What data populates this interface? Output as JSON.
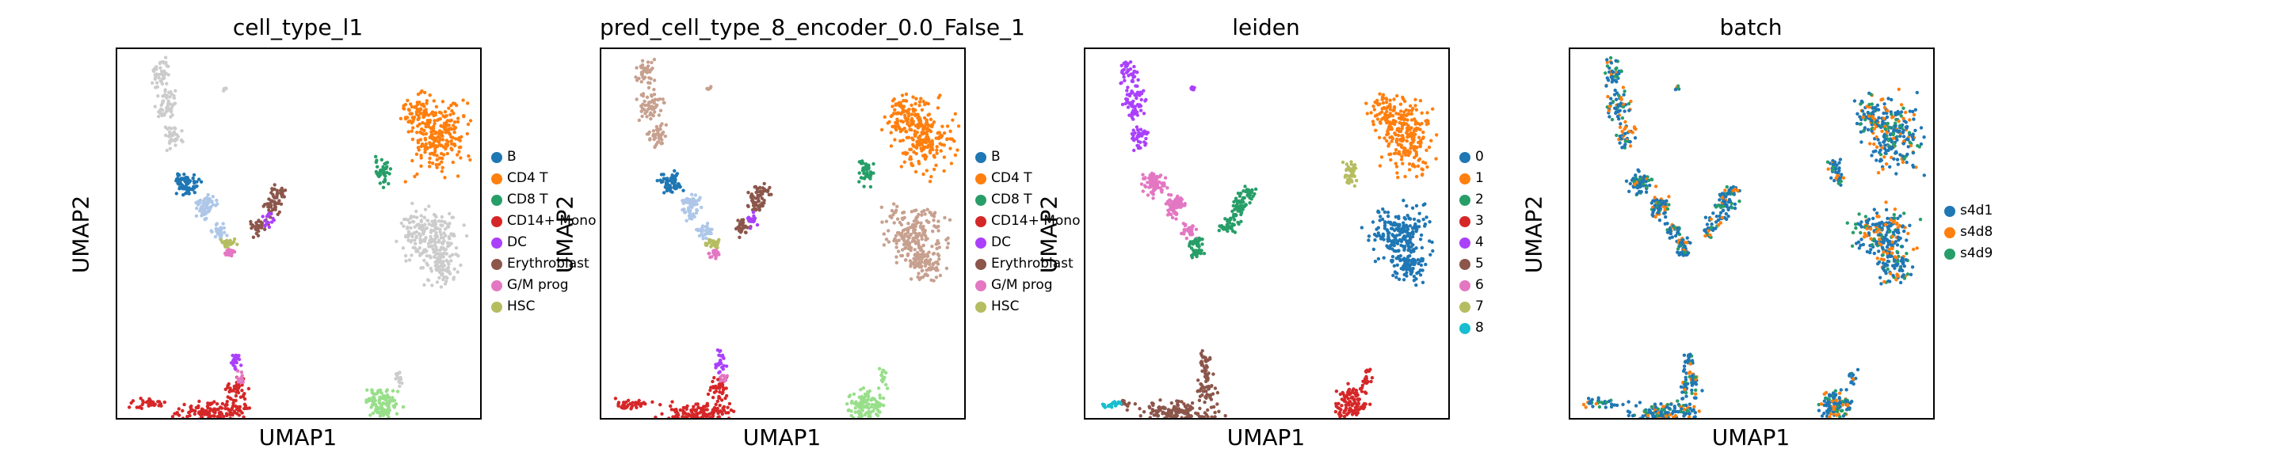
{
  "panels": [
    {
      "title": "cell_type_l1",
      "xlabel": "UMAP1",
      "ylabel": "UMAP2",
      "legend": [
        {
          "label": "B",
          "color": "#1f77b4"
        },
        {
          "label": "CD4 T",
          "color": "#ff7f0e"
        },
        {
          "label": "CD8 T",
          "color": "#279e68"
        },
        {
          "label": "CD14+ Mono",
          "color": "#d62728"
        },
        {
          "label": "DC",
          "color": "#aa40fc"
        },
        {
          "label": "Erythroblast",
          "color": "#8c564b"
        },
        {
          "label": "G/M prog",
          "color": "#e377c2"
        },
        {
          "label": "HSC",
          "color": "#b5bd61"
        }
      ]
    },
    {
      "title": "pred_cell_type_8_encoder_0.0_False_1",
      "xlabel": "UMAP1",
      "ylabel": "UMAP2",
      "legend": [
        {
          "label": "B",
          "color": "#1f77b4"
        },
        {
          "label": "CD4 T",
          "color": "#ff7f0e"
        },
        {
          "label": "CD8 T",
          "color": "#279e68"
        },
        {
          "label": "CD14+ Mono",
          "color": "#d62728"
        },
        {
          "label": "DC",
          "color": "#aa40fc"
        },
        {
          "label": "Erythroblast",
          "color": "#8c564b"
        },
        {
          "label": "G/M prog",
          "color": "#e377c2"
        },
        {
          "label": "HSC",
          "color": "#b5bd61"
        }
      ]
    },
    {
      "title": "leiden",
      "xlabel": "UMAP1",
      "ylabel": "UMAP2",
      "legend": [
        {
          "label": "0",
          "color": "#1f77b4"
        },
        {
          "label": "1",
          "color": "#ff7f0e"
        },
        {
          "label": "2",
          "color": "#279e68"
        },
        {
          "label": "3",
          "color": "#d62728"
        },
        {
          "label": "4",
          "color": "#aa40fc"
        },
        {
          "label": "5",
          "color": "#8c564b"
        },
        {
          "label": "6",
          "color": "#e377c2"
        },
        {
          "label": "7",
          "color": "#b5bd61"
        },
        {
          "label": "8",
          "color": "#17becf"
        }
      ]
    },
    {
      "title": "batch",
      "xlabel": "UMAP1",
      "ylabel": "UMAP2",
      "legend": [
        {
          "label": "s4d1",
          "color": "#1f77b4"
        },
        {
          "label": "s4d8",
          "color": "#ff7f0e"
        },
        {
          "label": "s4d9",
          "color": "#279e68"
        }
      ]
    }
  ],
  "chart_data": [
    {
      "type": "scatter",
      "title": "cell_type_l1",
      "xlabel": "UMAP1",
      "ylabel": "UMAP2",
      "grid": false,
      "legend_position": "right",
      "series": [
        {
          "name": "B",
          "color": "#1f77b4"
        },
        {
          "name": "CD4 T",
          "color": "#ff7f0e"
        },
        {
          "name": "CD8 T",
          "color": "#279e68"
        },
        {
          "name": "CD14+ Mono",
          "color": "#d62728"
        },
        {
          "name": "DC",
          "color": "#aa40fc"
        },
        {
          "name": "Erythroblast",
          "color": "#8c564b"
        },
        {
          "name": "G/M prog",
          "color": "#e377c2"
        },
        {
          "name": "HSC",
          "color": "#b5bd61"
        }
      ]
    },
    {
      "type": "scatter",
      "title": "pred_cell_type_8_encoder_0.0_False_1",
      "xlabel": "UMAP1",
      "ylabel": "UMAP2",
      "grid": false,
      "legend_position": "right",
      "series": [
        {
          "name": "B",
          "color": "#1f77b4"
        },
        {
          "name": "CD4 T",
          "color": "#ff7f0e"
        },
        {
          "name": "CD8 T",
          "color": "#279e68"
        },
        {
          "name": "CD14+ Mono",
          "color": "#d62728"
        },
        {
          "name": "DC",
          "color": "#aa40fc"
        },
        {
          "name": "Erythroblast",
          "color": "#8c564b"
        },
        {
          "name": "G/M prog",
          "color": "#e377c2"
        },
        {
          "name": "HSC",
          "color": "#b5bd61"
        }
      ]
    },
    {
      "type": "scatter",
      "title": "leiden",
      "xlabel": "UMAP1",
      "ylabel": "UMAP2",
      "grid": false,
      "legend_position": "right",
      "series": [
        {
          "name": "0",
          "color": "#1f77b4"
        },
        {
          "name": "1",
          "color": "#ff7f0e"
        },
        {
          "name": "2",
          "color": "#279e68"
        },
        {
          "name": "3",
          "color": "#d62728"
        },
        {
          "name": "4",
          "color": "#aa40fc"
        },
        {
          "name": "5",
          "color": "#8c564b"
        },
        {
          "name": "6",
          "color": "#e377c2"
        },
        {
          "name": "7",
          "color": "#b5bd61"
        },
        {
          "name": "8",
          "color": "#17becf"
        }
      ]
    },
    {
      "type": "scatter",
      "title": "batch",
      "xlabel": "UMAP1",
      "ylabel": "UMAP2",
      "grid": false,
      "legend_position": "right",
      "series": [
        {
          "name": "s4d1",
          "color": "#1f77b4"
        },
        {
          "name": "s4d8",
          "color": "#ff7f0e"
        },
        {
          "name": "s4d9",
          "color": "#279e68"
        }
      ]
    }
  ]
}
